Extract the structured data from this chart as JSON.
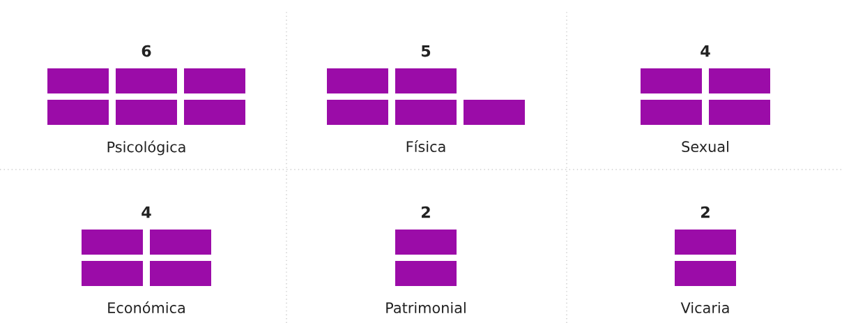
{
  "chart_data": [
    {
      "type": "other",
      "categories": [
        "Psicológica"
      ],
      "values": [
        6
      ],
      "color": "#9b0ca8",
      "data_labels": true
    },
    {
      "type": "other",
      "categories": [
        "Física"
      ],
      "values": [
        5
      ],
      "color": "#9b0ca8",
      "data_labels": true
    },
    {
      "type": "other",
      "categories": [
        "Sexual"
      ],
      "values": [
        4
      ],
      "color": "#9b0ca8",
      "data_labels": true
    },
    {
      "type": "other",
      "categories": [
        "Económica"
      ],
      "values": [
        4
      ],
      "color": "#9b0ca8",
      "data_labels": true
    },
    {
      "type": "other",
      "categories": [
        "Patrimonial"
      ],
      "values": [
        2
      ],
      "color": "#9b0ca8",
      "data_labels": true
    },
    {
      "type": "other",
      "categories": [
        "Vicaria"
      ],
      "values": [
        2
      ],
      "color": "#9b0ca8",
      "data_labels": true
    }
  ]
}
